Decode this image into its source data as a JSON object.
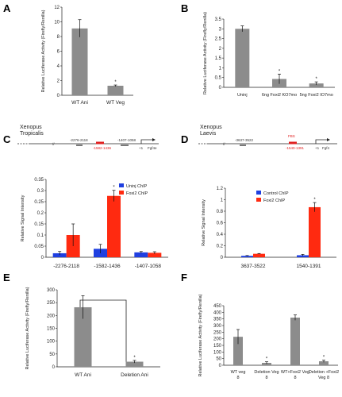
{
  "panels": {
    "A": "A",
    "B": "B",
    "C": "C",
    "D": "D",
    "E": "E",
    "F": "F"
  },
  "colors": {
    "grey": "#8c8c8c",
    "blue": "#1f3fe0",
    "red": "#ff2a10",
    "dark": "#222222"
  },
  "schematic_c": {
    "species": [
      "Xenopus",
      "Tropicalis"
    ],
    "left_marks": [
      "-2276-2118"
    ],
    "red_mark": "-1582-1436",
    "right_mark": "-1407-1058",
    "tss": "+1",
    "gene": "Fgf4e"
  },
  "schematic_d": {
    "species": [
      "Xenopus",
      "Laevis"
    ],
    "left_mark": "-3637-3522",
    "red_top": "FBS",
    "red_mark": "-1540-1391",
    "tss": "+1",
    "gene": "Fgf4"
  },
  "chart_data": [
    {
      "panel": "A",
      "type": "bar",
      "ylabel": "Relative Luciferase Activity (Firefly/Renilla)",
      "categories": [
        "WT Ani",
        "WT Veg"
      ],
      "values": [
        9.1,
        1.3
      ],
      "errors": [
        1.2,
        0.1
      ],
      "stars": [
        "",
        "*"
      ],
      "ylim": [
        0,
        12
      ],
      "yticks": [
        "0",
        "2",
        "4",
        "6",
        "8",
        "10",
        "12"
      ]
    },
    {
      "panel": "B",
      "type": "bar",
      "ylabel": "Relative Luciferase Activity (Firefly/Renilla)",
      "categories": [
        "Uninj",
        "6ng Foxi2 KO7mo",
        "5ng Foxi2 IO7mo"
      ],
      "values": [
        3.0,
        0.43,
        0.2
      ],
      "errors": [
        0.15,
        0.25,
        0.08
      ],
      "stars": [
        "",
        "*",
        "*"
      ],
      "ylim": [
        0,
        3.5
      ],
      "yticks": [
        "0",
        "0.5",
        "1",
        "1.5",
        "2",
        "2.5",
        "3",
        "3.5"
      ]
    },
    {
      "panel": "C",
      "type": "bar",
      "ylabel": "Relative Signal Intensity",
      "categories": [
        "-2276-2118",
        "-1582-1436",
        "-1407-1058"
      ],
      "series": [
        {
          "name": "Uninj ChIP",
          "values": [
            0.018,
            0.038,
            0.022
          ],
          "errors": [
            0.008,
            0.02,
            0.004
          ]
        },
        {
          "name": "Foxi2 ChIP",
          "values": [
            0.1,
            0.276,
            0.02
          ],
          "errors": [
            0.05,
            0.025,
            0.005
          ]
        }
      ],
      "stars": [
        "",
        "*",
        ""
      ],
      "ylim": [
        0,
        0.35
      ],
      "yticks": [
        "0",
        "0.05",
        "0.1",
        "0.15",
        "0.2",
        "0.25",
        "0.3",
        "0.35"
      ]
    },
    {
      "panel": "D",
      "type": "bar",
      "ylabel": "Relative Signal Intensity",
      "categories": [
        "3637-3522",
        "1540-1391"
      ],
      "series": [
        {
          "name": "Control ChIP",
          "values": [
            0.025,
            0.035
          ],
          "errors": [
            0.005,
            0.015
          ]
        },
        {
          "name": "Foxi2 ChIP",
          "values": [
            0.06,
            0.87
          ],
          "errors": [
            0.005,
            0.08
          ]
        }
      ],
      "stars": [
        "",
        "*"
      ],
      "ylim": [
        0,
        1.2
      ],
      "yticks": [
        "0",
        "0.2",
        "0.4",
        "0.6",
        "0.8",
        "1",
        "1.2"
      ]
    },
    {
      "panel": "E",
      "type": "bar",
      "ylabel": "Relative Luciferase Activity (Firefly/Renilla)",
      "categories": [
        "WT Ani",
        "Deletion Ani"
      ],
      "values": [
        232,
        20
      ],
      "errors": [
        45,
        5
      ],
      "stars": [
        "",
        "*"
      ],
      "ylim": [
        0,
        300
      ],
      "yticks": [
        "0",
        "50",
        "100",
        "150",
        "200",
        "250",
        "300"
      ]
    },
    {
      "panel": "F",
      "type": "bar",
      "ylabel": "Relative Luciferase Activity (Firefly/Renilla)",
      "categories": [
        "WT veg 8",
        "Deletion Veg 8",
        "WT+Foxi2 Veg 8",
        "Deletion +Foxi2 Veg 8"
      ],
      "values": [
        215,
        18,
        360,
        30
      ],
      "errors": [
        55,
        8,
        20,
        8
      ],
      "stars": [
        "",
        "*",
        "",
        "*"
      ],
      "ylim": [
        0,
        450
      ],
      "yticks": [
        "0",
        "50",
        "100",
        "150",
        "200",
        "250",
        "300",
        "350",
        "400",
        "450"
      ]
    }
  ]
}
